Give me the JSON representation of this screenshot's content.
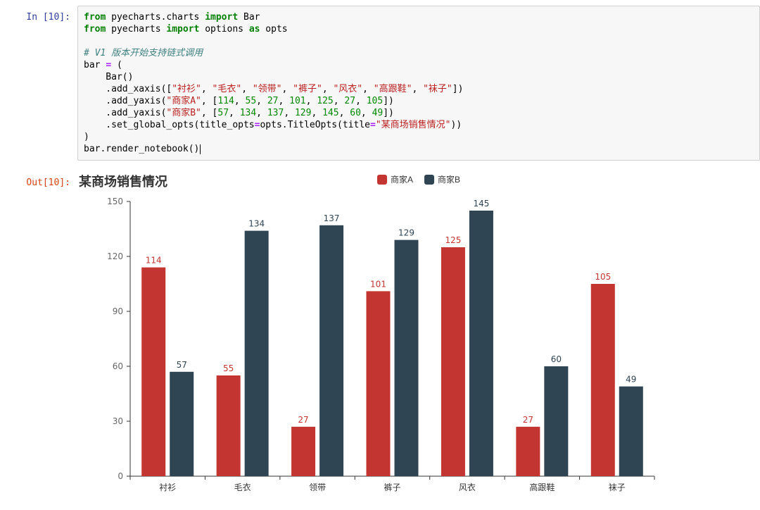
{
  "notebook": {
    "input_prompt": "In [10]:",
    "output_prompt": "Out[10]:",
    "code_lines": [
      [
        [
          "kw",
          "from"
        ],
        [
          "pl",
          " pyecharts.charts "
        ],
        [
          "kw",
          "import"
        ],
        [
          "pl",
          " Bar"
        ]
      ],
      [
        [
          "kw",
          "from"
        ],
        [
          "pl",
          " pyecharts "
        ],
        [
          "kw",
          "import"
        ],
        [
          "pl",
          " options "
        ],
        [
          "kw",
          "as"
        ],
        [
          "pl",
          " opts"
        ]
      ],
      [],
      [
        [
          "com",
          "# V1 版本开始支持链式调用"
        ]
      ],
      [
        [
          "pl",
          "bar "
        ],
        [
          "op",
          "="
        ],
        [
          "pl",
          " ("
        ]
      ],
      [
        [
          "pl",
          "    Bar()"
        ]
      ],
      [
        [
          "pl",
          "    .add_xaxis(["
        ],
        [
          "str",
          "\"衬衫\""
        ],
        [
          "pl",
          ", "
        ],
        [
          "str",
          "\"毛衣\""
        ],
        [
          "pl",
          ", "
        ],
        [
          "str",
          "\"领带\""
        ],
        [
          "pl",
          ", "
        ],
        [
          "str",
          "\"裤子\""
        ],
        [
          "pl",
          ", "
        ],
        [
          "str",
          "\"风衣\""
        ],
        [
          "pl",
          ", "
        ],
        [
          "str",
          "\"高跟鞋\""
        ],
        [
          "pl",
          ", "
        ],
        [
          "str",
          "\"袜子\""
        ],
        [
          "pl",
          "])"
        ]
      ],
      [
        [
          "pl",
          "    .add_yaxis("
        ],
        [
          "str",
          "\"商家A\""
        ],
        [
          "pl",
          ", ["
        ],
        [
          "num",
          "114"
        ],
        [
          "pl",
          ", "
        ],
        [
          "num",
          "55"
        ],
        [
          "pl",
          ", "
        ],
        [
          "num",
          "27"
        ],
        [
          "pl",
          ", "
        ],
        [
          "num",
          "101"
        ],
        [
          "pl",
          ", "
        ],
        [
          "num",
          "125"
        ],
        [
          "pl",
          ", "
        ],
        [
          "num",
          "27"
        ],
        [
          "pl",
          ", "
        ],
        [
          "num",
          "105"
        ],
        [
          "pl",
          "])"
        ]
      ],
      [
        [
          "pl",
          "    .add_yaxis("
        ],
        [
          "str",
          "\"商家B\""
        ],
        [
          "pl",
          ", ["
        ],
        [
          "num",
          "57"
        ],
        [
          "pl",
          ", "
        ],
        [
          "num",
          "134"
        ],
        [
          "pl",
          ", "
        ],
        [
          "num",
          "137"
        ],
        [
          "pl",
          ", "
        ],
        [
          "num",
          "129"
        ],
        [
          "pl",
          ", "
        ],
        [
          "num",
          "145"
        ],
        [
          "pl",
          ", "
        ],
        [
          "num",
          "60"
        ],
        [
          "pl",
          ", "
        ],
        [
          "num",
          "49"
        ],
        [
          "pl",
          "])"
        ]
      ],
      [
        [
          "pl",
          "    .set_global_opts(title_opts"
        ],
        [
          "op",
          "="
        ],
        [
          "pl",
          "opts.TitleOpts(title"
        ],
        [
          "op",
          "="
        ],
        [
          "str",
          "\"某商场销售情况\""
        ],
        [
          "pl",
          "))"
        ]
      ],
      [
        [
          "pl",
          ")"
        ]
      ],
      [
        [
          "pl",
          "bar.render_notebook()"
        ],
        [
          "cursor",
          ""
        ]
      ]
    ]
  },
  "chart_data": {
    "type": "bar",
    "title": "某商场销售情况",
    "categories": [
      "衬衫",
      "毛衣",
      "领带",
      "裤子",
      "风衣",
      "高跟鞋",
      "袜子"
    ],
    "series": [
      {
        "name": "商家A",
        "color": "#c23531",
        "values": [
          114,
          55,
          27,
          101,
          125,
          27,
          105
        ]
      },
      {
        "name": "商家B",
        "color": "#2f4554",
        "values": [
          57,
          134,
          137,
          129,
          145,
          60,
          49
        ]
      }
    ],
    "ylim": [
      0,
      150
    ],
    "yticks": [
      0,
      30,
      60,
      90,
      120,
      150
    ],
    "xlabel": "",
    "ylabel": "",
    "legend_position": "top-center",
    "grid": false
  }
}
